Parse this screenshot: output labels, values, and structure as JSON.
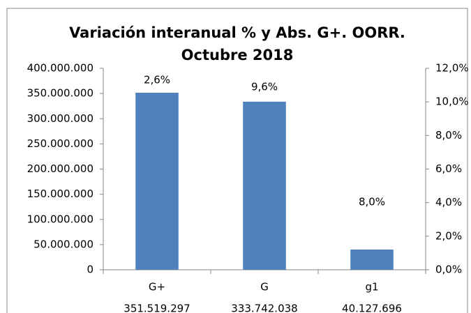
{
  "chart_data": {
    "type": "bar",
    "title": [
      "Variación interanual % y Abs. G+. OORR.",
      "Octubre 2018"
    ],
    "categories": [
      "G+",
      "G",
      "g1"
    ],
    "values": [
      351519297,
      333742038,
      40127696
    ],
    "value_labels": [
      "351.519.297",
      "333.742.038",
      "40.127.696"
    ],
    "annotations": [
      "2,6%",
      "9,6%",
      "8,0%"
    ],
    "color": "#4f81bd",
    "ylim": [
      0,
      400000000
    ],
    "yticks": [
      0,
      {
        "value": 50000000,
        "label": "50.000.000"
      },
      {
        "value": 100000000,
        "label": "100.000.000"
      },
      {
        "value": 150000000,
        "label": "150.000.000"
      },
      {
        "value": 200000000,
        "label": "200.000.000"
      },
      {
        "value": 250000000,
        "label": "250.000.000"
      },
      {
        "value": 300000000,
        "label": "300.000.000"
      },
      {
        "value": 350000000,
        "label": "350.000.000"
      },
      {
        "value": 400000000,
        "label": "400.000.000"
      }
    ],
    "y2lim": [
      0,
      12
    ],
    "y2ticks": [
      {
        "value": 0,
        "label": "0,0%"
      },
      {
        "value": 2,
        "label": "2,0%"
      },
      {
        "value": 4,
        "label": "4,0%"
      },
      {
        "value": 6,
        "label": "6,0%"
      },
      {
        "value": 8,
        "label": "8,0%"
      },
      {
        "value": 10,
        "label": "10,0%"
      },
      {
        "value": 12,
        "label": "12,0%"
      }
    ],
    "grid": false
  }
}
